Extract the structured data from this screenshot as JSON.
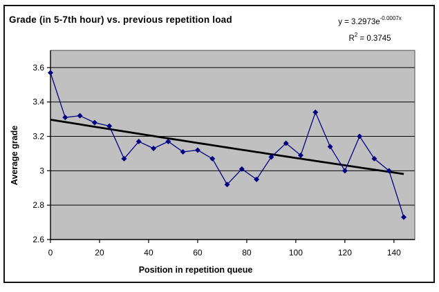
{
  "title": "Grade (in 5-7th hour) vs. previous repetition load",
  "equation": {
    "line1_base": "y = 3.2973e",
    "line1_sup": "-0.0007x",
    "line2_base": "R",
    "line2_sup": "2",
    "line2_tail": " = 0.3745"
  },
  "chart_data": {
    "type": "line",
    "title": "Grade (in 5-7th hour) vs. previous repetition load",
    "xlabel": "Position in repetition queue",
    "ylabel": "Average grade",
    "x": [
      0,
      6,
      12,
      18,
      24,
      30,
      36,
      42,
      48,
      54,
      60,
      66,
      72,
      78,
      84,
      90,
      96,
      102,
      108,
      114,
      120,
      126,
      132,
      138,
      144
    ],
    "series": [
      {
        "name": "Average grade",
        "values": [
          3.57,
          3.31,
          3.32,
          3.28,
          3.26,
          3.07,
          3.17,
          3.13,
          3.17,
          3.11,
          3.12,
          3.07,
          2.92,
          3.01,
          2.95,
          3.08,
          3.16,
          3.09,
          3.34,
          3.14,
          3.0,
          3.2,
          3.07,
          3.0,
          2.73
        ]
      }
    ],
    "trendline": {
      "type": "exponential",
      "equation": "y = 3.2973e^(-0.0007x)",
      "a": 3.2973,
      "b": -0.0007,
      "r_squared": 0.3745,
      "x_start": 0,
      "x_end": 144
    },
    "xticks": [
      0,
      20,
      40,
      60,
      80,
      100,
      120,
      140
    ],
    "yticks": [
      2.6,
      2.8,
      3,
      3.2,
      3.4,
      3.6
    ],
    "xlim": [
      0,
      148.5
    ],
    "ylim": [
      2.6,
      3.7
    ],
    "grid": "horizontal-only",
    "legend": "none",
    "marker": "diamond",
    "colors": {
      "plot_background": "#c0c0c0",
      "series_line": "#000080",
      "marker": "#000080",
      "trendline": "#000000",
      "gridline": "#000000",
      "plot_border": "#4d4d4d",
      "text": "#000000"
    }
  }
}
